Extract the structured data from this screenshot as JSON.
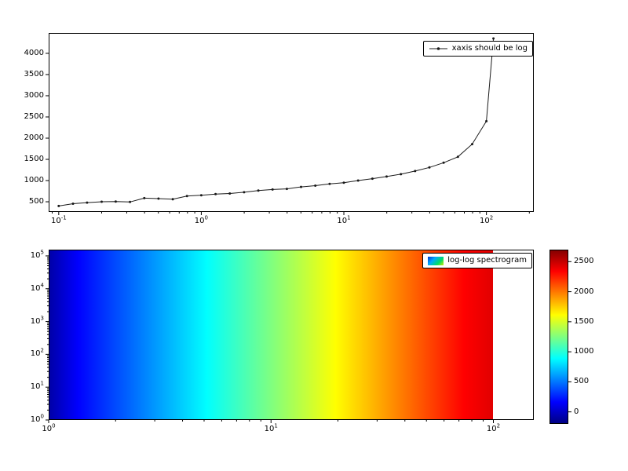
{
  "figure": {
    "background": "#ffffff"
  },
  "chart_data": [
    {
      "type": "line",
      "legend": "xaxis should be log",
      "xscale": "log",
      "yscale": "linear",
      "xlim": [
        0.085,
        215
      ],
      "ylim": [
        260,
        4480
      ],
      "xtick_exponents": [
        -1,
        0,
        1,
        2
      ],
      "xtick_labels": [
        "10^-1",
        "10^0",
        "10^1",
        "10^2"
      ],
      "yticks": [
        500,
        1000,
        1500,
        2000,
        2500,
        3000,
        3500,
        4000
      ],
      "line_color": "#1a1a1a",
      "marker": "dot",
      "x": [
        0.1,
        0.126,
        0.158,
        0.2,
        0.251,
        0.316,
        0.398,
        0.501,
        0.631,
        0.794,
        1.0,
        1.259,
        1.585,
        1.995,
        2.512,
        3.162,
        3.981,
        5.012,
        6.31,
        7.943,
        10.0,
        12.59,
        15.85,
        19.95,
        25.12,
        31.62,
        39.81,
        50.12,
        63.1,
        79.43,
        100.0,
        112.0
      ],
      "y": [
        400,
        455,
        480,
        500,
        505,
        495,
        585,
        575,
        560,
        635,
        655,
        680,
        695,
        725,
        765,
        790,
        805,
        850,
        880,
        920,
        950,
        1000,
        1045,
        1095,
        1150,
        1225,
        1310,
        1420,
        1560,
        1860,
        2400,
        4350
      ]
    },
    {
      "type": "heatmap",
      "legend": "log-log spectrogram",
      "xscale": "log",
      "yscale": "log",
      "xlim": [
        1,
        152
      ],
      "ylim": [
        1,
        155000
      ],
      "image_x_range": [
        1,
        100
      ],
      "xtick_exponents": [
        0,
        1,
        2
      ],
      "xtick_labels": [
        "10^0",
        "10^1",
        "10^2"
      ],
      "ytick_exponents": [
        0,
        1,
        2,
        3,
        4,
        5
      ],
      "ytick_labels": [
        "10^0",
        "10^1",
        "10^2",
        "10^3",
        "10^4",
        "10^5"
      ],
      "colormap": "jet",
      "gradient_stops": [
        {
          "pos": 0.0,
          "color": "#0000a8"
        },
        {
          "pos": 0.065,
          "color": "#0000ff"
        },
        {
          "pos": 0.355,
          "color": "#00ffff"
        },
        {
          "pos": 0.645,
          "color": "#ffff00"
        },
        {
          "pos": 0.935,
          "color": "#ff0000"
        },
        {
          "pos": 1.0,
          "color": "#e10000"
        }
      ],
      "colorbar": {
        "vmin": -200,
        "vmax": 2700,
        "ticks": [
          0,
          500,
          1000,
          1500,
          2000,
          2500
        ],
        "stops": [
          {
            "pos": 0.0,
            "color": "#000080"
          },
          {
            "pos": 0.125,
            "color": "#0000ff"
          },
          {
            "pos": 0.375,
            "color": "#00ffff"
          },
          {
            "pos": 0.625,
            "color": "#ffff00"
          },
          {
            "pos": 0.875,
            "color": "#ff0000"
          },
          {
            "pos": 1.0,
            "color": "#800000"
          }
        ]
      }
    }
  ]
}
